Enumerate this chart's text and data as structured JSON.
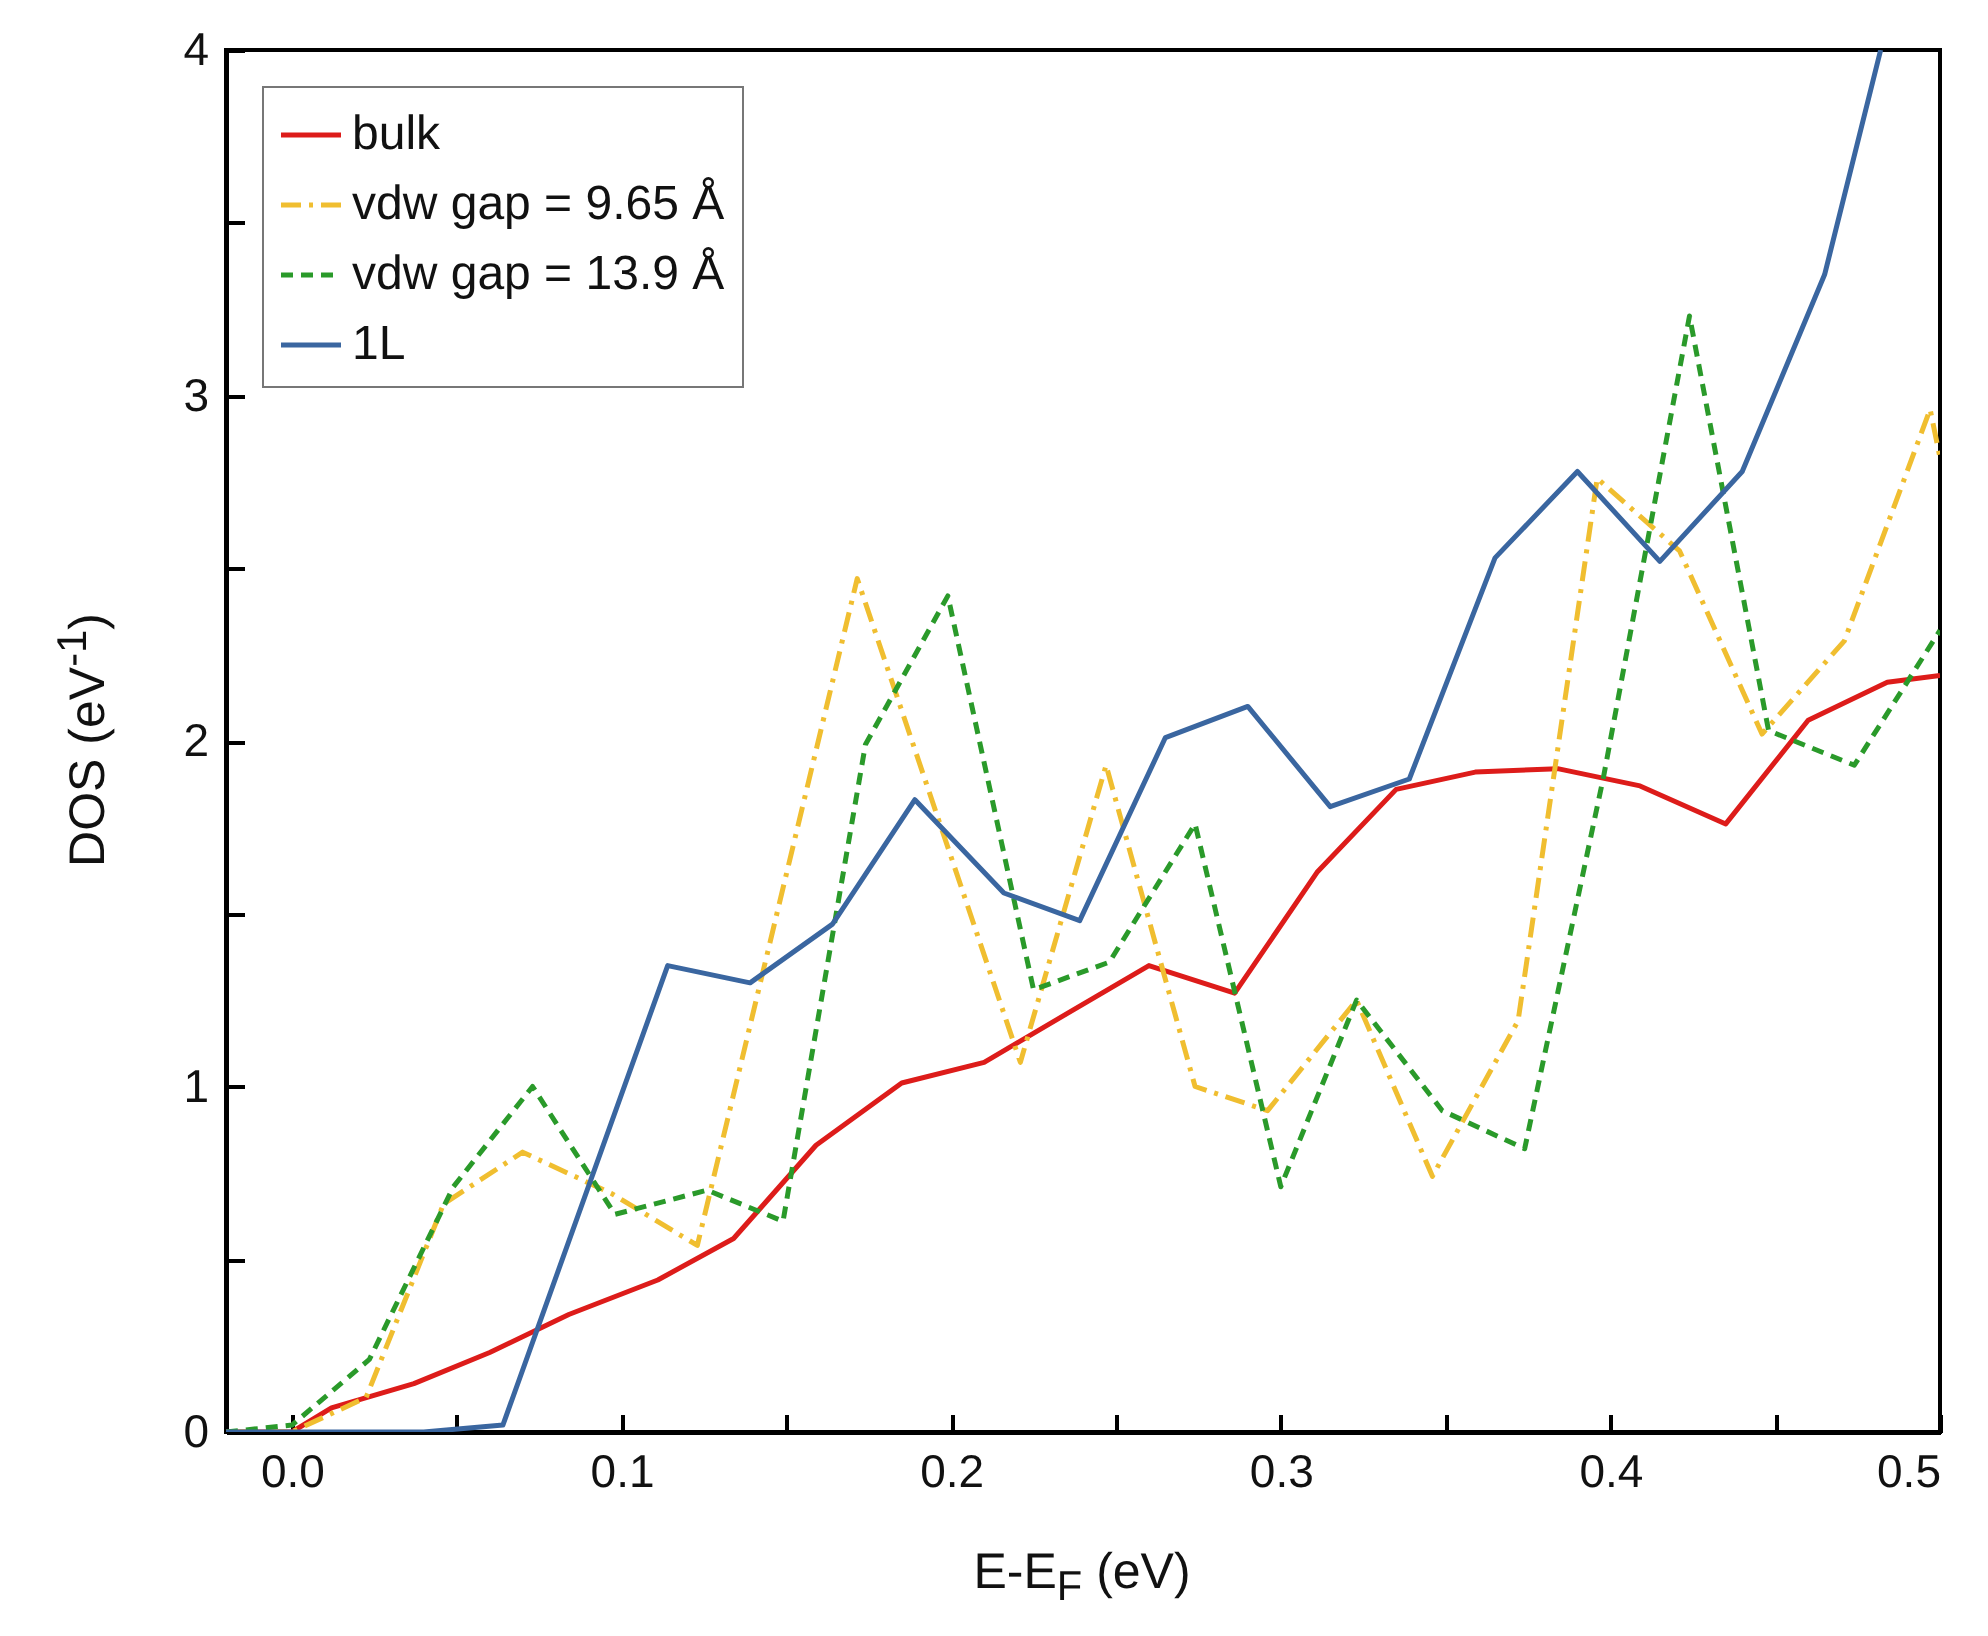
{
  "chart_data": {
    "type": "line",
    "xlabel": "E-E$_{F}$ (eV)",
    "ylabel": "DOS (eV$^{-1}$)",
    "xlim": [
      -0.02,
      0.5
    ],
    "ylim": [
      0,
      4
    ],
    "xticks": [
      {
        "value": 0,
        "label": "0.0"
      },
      {
        "value": 0.05,
        "label": null
      },
      0.1,
      {
        "value": 0.15,
        "label": null
      },
      0.2,
      {
        "value": 0.25,
        "label": null
      },
      0.3,
      {
        "value": 0.35,
        "label": null
      },
      0.4,
      {
        "value": 0.45,
        "label": null
      },
      0.5
    ],
    "yticks": [
      0,
      {
        "value": 0.5,
        "label": null
      },
      1,
      {
        "value": 1.5,
        "label": null
      },
      2,
      {
        "value": 2.5,
        "label": null
      },
      3,
      {
        "value": 3.5,
        "label": null
      },
      4
    ],
    "grid": false,
    "legend": "top left",
    "marker": "none",
    "series": [
      {
        "name": "bulk",
        "color": "#dd1c1a",
        "line_style": "solid",
        "x": [
          -0.02,
          0,
          0.012,
          0.037,
          0.06,
          0.084,
          0.111,
          0.134,
          0.159,
          0.185,
          0.21,
          0.235,
          0.26,
          0.286,
          0.311,
          0.335,
          0.359,
          0.384,
          0.409,
          0.435,
          0.46,
          0.484,
          0.5
        ],
        "values": [
          0,
          0,
          0.07,
          0.14,
          0.23,
          0.34,
          0.44,
          0.56,
          0.83,
          1.01,
          1.07,
          1.21,
          1.35,
          1.27,
          1.62,
          1.86,
          1.91,
          1.92,
          1.87,
          1.76,
          2.06,
          2.17,
          2.19
        ]
      },
      {
        "name": "vdw gap = 9.65 Å",
        "color": "#f0be30",
        "line_style": "dashdot",
        "x": [
          -0.02,
          0,
          0.0225,
          0.046,
          0.07,
          0.097,
          0.123,
          0.1715,
          0.221,
          0.247,
          0.274,
          0.296,
          0.323,
          0.346,
          0.372,
          0.396,
          0.421,
          0.446,
          0.471,
          0.497,
          0.5
        ],
        "values": [
          0,
          0,
          0.1,
          0.66,
          0.81,
          0.69,
          0.54,
          2.47,
          1.07,
          1.93,
          1.0,
          0.93,
          1.25,
          0.74,
          1.19,
          2.76,
          2.55,
          2.02,
          2.29,
          2.96,
          2.82
        ]
      },
      {
        "name": "vdw gap = 13.9 Å",
        "color": "#2a9a2a",
        "line_style": "dashed",
        "x": [
          -0.02,
          0,
          0.0235,
          0.049,
          0.073,
          0.098,
          0.126,
          0.149,
          0.174,
          0.199,
          0.225,
          0.248,
          0.274,
          0.3,
          0.323,
          0.349,
          0.374,
          0.398,
          0.424,
          0.448,
          0.474,
          0.5
        ],
        "values": [
          0,
          0.02,
          0.21,
          0.71,
          1.0,
          0.63,
          0.7,
          0.61,
          1.99,
          2.42,
          1.28,
          1.36,
          1.76,
          0.71,
          1.25,
          0.93,
          0.82,
          1.9,
          3.23,
          2.03,
          1.93,
          2.32
        ]
      },
      {
        "name": "1L",
        "color": "#3a66a0",
        "line_style": "solid",
        "x": [
          -0.02,
          0.04,
          0.064,
          0.114,
          0.139,
          0.164,
          0.189,
          0.216,
          0.239,
          0.265,
          0.29,
          0.315,
          0.339,
          0.365,
          0.39,
          0.415,
          0.44,
          0.465,
          0.482
        ],
        "values": [
          0,
          0,
          0.02,
          1.35,
          1.3,
          1.47,
          1.83,
          1.56,
          1.48,
          2.01,
          2.1,
          1.81,
          1.89,
          2.53,
          2.78,
          2.52,
          2.78,
          3.35,
          4.0
        ]
      }
    ]
  }
}
